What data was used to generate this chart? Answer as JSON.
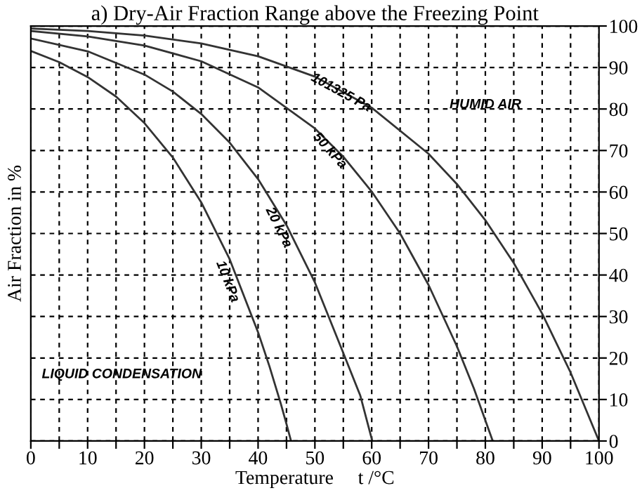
{
  "chart_data": {
    "type": "line",
    "title": "a) Dry-Air Fraction Range above the Freezing Point",
    "xlabel": "Temperature     t /°C",
    "ylabel": "Air Fraction in %",
    "xlim": [
      0,
      100
    ],
    "ylim": [
      0,
      100
    ],
    "xticks": [
      0,
      {
        "value": 5,
        "label": null
      },
      10,
      {
        "value": 15,
        "label": null
      },
      20,
      {
        "value": 25,
        "label": null
      },
      30,
      {
        "value": 35,
        "label": null
      },
      40,
      {
        "value": 45,
        "label": null
      },
      50,
      {
        "value": 55,
        "label": null
      },
      60,
      {
        "value": 65,
        "label": null
      },
      70,
      {
        "value": 75,
        "label": null
      },
      80,
      {
        "value": 85,
        "label": null
      },
      90,
      {
        "value": 95,
        "label": null
      },
      100
    ],
    "yticks": [
      0,
      10,
      20,
      30,
      40,
      50,
      60,
      70,
      80,
      90,
      100
    ],
    "grid": true,
    "marker": "none",
    "line_style": "solid",
    "series": [
      {
        "color": "#333333",
        "x": [
          0,
          5,
          10,
          15,
          20,
          25,
          30,
          35,
          40,
          42,
          44,
          45,
          45.8
        ],
        "values": [
          94,
          91.3,
          87.7,
          83,
          76.6,
          68.3,
          57.5,
          43.8,
          26.2,
          18,
          9,
          4.1,
          0
        ]
      },
      {
        "color": "#333333",
        "x": [
          0,
          10,
          20,
          25,
          30,
          35,
          40,
          45,
          50,
          55,
          58,
          60.1
        ],
        "values": [
          97,
          93.9,
          88.3,
          84.2,
          78.8,
          71.9,
          63.1,
          52,
          38.2,
          21.2,
          10.9,
          0
        ]
      },
      {
        "color": "#333333",
        "x": [
          0,
          10,
          20,
          30,
          40,
          50,
          55,
          60,
          65,
          70,
          75,
          78,
          81.3
        ],
        "values": [
          98.8,
          97.5,
          95.3,
          91.5,
          85.2,
          75.3,
          68.5,
          60.1,
          50,
          37.6,
          22.8,
          12.6,
          0
        ]
      },
      {
        "color": "#333333",
        "x": [
          0,
          10,
          20,
          30,
          40,
          50,
          60,
          70,
          75,
          80,
          85,
          90,
          95,
          100
        ],
        "values": [
          99.4,
          98.8,
          97.7,
          95.8,
          92.7,
          87.8,
          80.3,
          69.2,
          61.9,
          53.2,
          42.9,
          30.7,
          16.5,
          0
        ]
      }
    ],
    "annotations": [
      {
        "text": "10 kPa",
        "x": 37,
        "y": 37
      },
      {
        "text": "20 kPa",
        "x": 46,
        "y": 50
      },
      {
        "text": "50 kPa",
        "x": 55,
        "y": 68.5
      },
      {
        "text": "101325 Pa",
        "x": 57,
        "y": 82.5
      },
      "HUMID AIR",
      "LIQUID CONDENSATION"
    ]
  }
}
